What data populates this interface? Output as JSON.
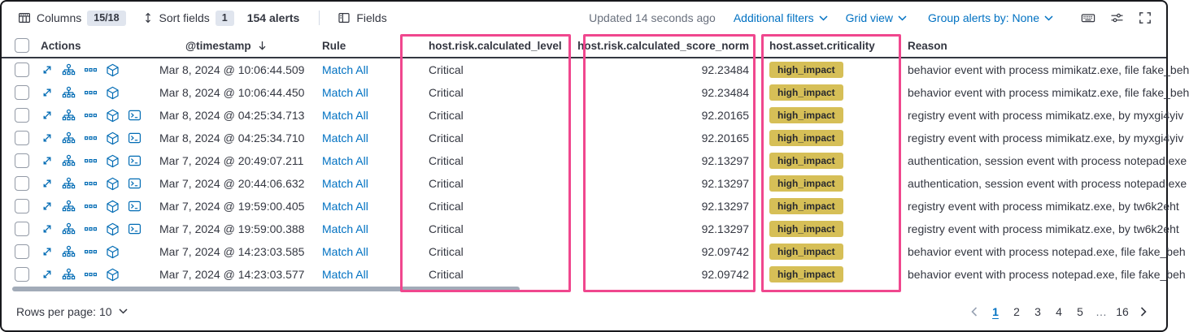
{
  "toolbar": {
    "columns_label": "Columns",
    "columns_badge": "15/18",
    "sort_fields_label": "Sort fields",
    "sort_fields_badge": "1",
    "alerts_count": "154 alerts",
    "fields_label": "Fields",
    "updated_text": "Updated 14 seconds ago",
    "additional_filters_label": "Additional filters",
    "grid_view_label": "Grid view",
    "group_alerts_label": "Group alerts by: None",
    "icons": [
      "columns-icon",
      "sort-icon",
      "fields-icon",
      "keyboard-icon",
      "display-options-icon",
      "fullscreen-icon"
    ]
  },
  "table": {
    "headers": {
      "actions": "Actions",
      "timestamp": "@timestamp",
      "rule": "Rule",
      "level": "host.risk.calculated_level",
      "score": "host.risk.calculated_score_norm",
      "criticality": "host.asset.criticality",
      "reason": "Reason"
    },
    "action_icons": [
      "expand-icon",
      "analyzer-icon",
      "more-actions-icon",
      "analyze-event-cube-icon",
      "session-view-terminal-icon"
    ],
    "rows": [
      {
        "timestamp": "Mar 8, 2024 @ 10:06:44.509",
        "rule": "Match All",
        "level": "Critical",
        "score": "92.23484",
        "criticality": "high_impact",
        "reason": "behavior event with process mimikatz.exe, file fake_beh",
        "session_view": false
      },
      {
        "timestamp": "Mar 8, 2024 @ 10:06:44.450",
        "rule": "Match All",
        "level": "Critical",
        "score": "92.23484",
        "criticality": "high_impact",
        "reason": "behavior event with process mimikatz.exe, file fake_beh",
        "session_view": false
      },
      {
        "timestamp": "Mar 8, 2024 @ 04:25:34.713",
        "rule": "Match All",
        "level": "Critical",
        "score": "92.20165",
        "criticality": "high_impact",
        "reason": "registry event with process mimikatz.exe, by myxgi4yiv",
        "session_view": true
      },
      {
        "timestamp": "Mar 8, 2024 @ 04:25:34.710",
        "rule": "Match All",
        "level": "Critical",
        "score": "92.20165",
        "criticality": "high_impact",
        "reason": "registry event with process mimikatz.exe, by myxgi4yiv",
        "session_view": true
      },
      {
        "timestamp": "Mar 7, 2024 @ 20:49:07.211",
        "rule": "Match All",
        "level": "Critical",
        "score": "92.13297",
        "criticality": "high_impact",
        "reason": "authentication, session event with process notepad.exe",
        "session_view": true
      },
      {
        "timestamp": "Mar 7, 2024 @ 20:44:06.632",
        "rule": "Match All",
        "level": "Critical",
        "score": "92.13297",
        "criticality": "high_impact",
        "reason": "authentication, session event with process notepad.exe",
        "session_view": true
      },
      {
        "timestamp": "Mar 7, 2024 @ 19:59:00.405",
        "rule": "Match All",
        "level": "Critical",
        "score": "92.13297",
        "criticality": "high_impact",
        "reason": "registry event with process mimikatz.exe, by tw6k2eht",
        "session_view": true
      },
      {
        "timestamp": "Mar 7, 2024 @ 19:59:00.388",
        "rule": "Match All",
        "level": "Critical",
        "score": "92.13297",
        "criticality": "high_impact",
        "reason": "registry event with process mimikatz.exe, by tw6k2eht",
        "session_view": true
      },
      {
        "timestamp": "Mar 7, 2024 @ 14:23:03.585",
        "rule": "Match All",
        "level": "Critical",
        "score": "92.09742",
        "criticality": "high_impact",
        "reason": "behavior event with process notepad.exe, file fake_beh",
        "session_view": false
      },
      {
        "timestamp": "Mar 7, 2024 @ 14:23:03.577",
        "rule": "Match All",
        "level": "Critical",
        "score": "92.09742",
        "criticality": "high_impact",
        "reason": "behavior event with process notepad.exe, file fake_beh",
        "session_view": false
      }
    ]
  },
  "footer": {
    "rows_per_page": "Rows per page: 10",
    "pages": [
      {
        "label": "1",
        "active": true
      },
      {
        "label": "2"
      },
      {
        "label": "3"
      },
      {
        "label": "4"
      },
      {
        "label": "5"
      },
      {
        "label": "…",
        "ellipsis": true
      },
      {
        "label": "16"
      }
    ]
  },
  "colors": {
    "highlight_pink": "#f0478e",
    "criticality_badge": "#d6bf57",
    "link_blue": "#0071c2",
    "action_icon_blue": "#006bb4",
    "text_dark": "#343741",
    "text_gray": "#69707d"
  }
}
